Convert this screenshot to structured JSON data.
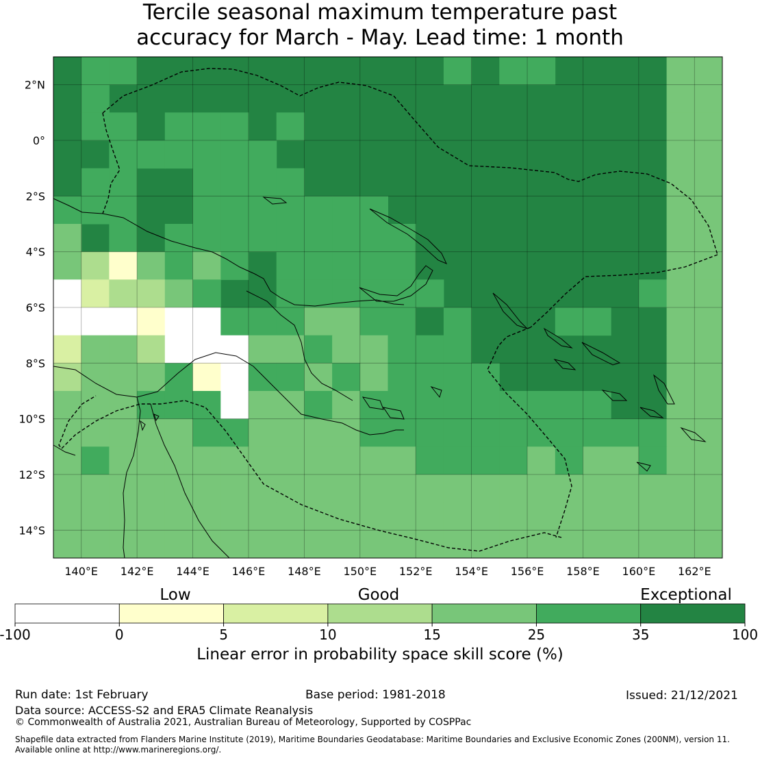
{
  "title_line1": "Tercile seasonal maximum temperature past",
  "title_line2": "accuracy for March - May. Lead time: 1 month",
  "lat_labels": [
    "2°N",
    "0°",
    "2°S",
    "4°S",
    "6°S",
    "8°S",
    "10°S",
    "12°S",
    "14°S"
  ],
  "lon_labels": [
    "140°E",
    "142°E",
    "144°E",
    "146°E",
    "148°E",
    "150°E",
    "152°E",
    "154°E",
    "156°E",
    "158°E",
    "160°E",
    "162°E"
  ],
  "legend": {
    "category_labels": [
      "Low",
      "Good",
      "Exceptional"
    ],
    "tick_labels": [
      "-100",
      "0",
      "5",
      "10",
      "15",
      "25",
      "35",
      "100"
    ],
    "colors": [
      "#ffffff",
      "#ffffcc",
      "#d9f0a3",
      "#addd8e",
      "#78c679",
      "#41ab5d",
      "#238443"
    ],
    "axis_label": "Linear error in probability space skill score (%)"
  },
  "footer": {
    "run_date": "Run date: 1st February",
    "base_period": "Base period: 1981-2018",
    "issued": "Issued: 21/12/2021",
    "data_source": "Data source: ACCESS-S2 and ERA5 Climate Reanalysis",
    "copyright": "© Commonwealth of Australia 2021, Australian Bureau of Meteorology, Supported by COSPPac",
    "shapefile_line1": "Shapefile data extracted from Flanders Marine Institute (2019), Maritime Boundaries Geodatabase: Maritime Boundaries and Exclusive Economic Zones (200NM), version 11.",
    "shapefile_line2": "Available online at http://www.marineregions.org/."
  }
}
